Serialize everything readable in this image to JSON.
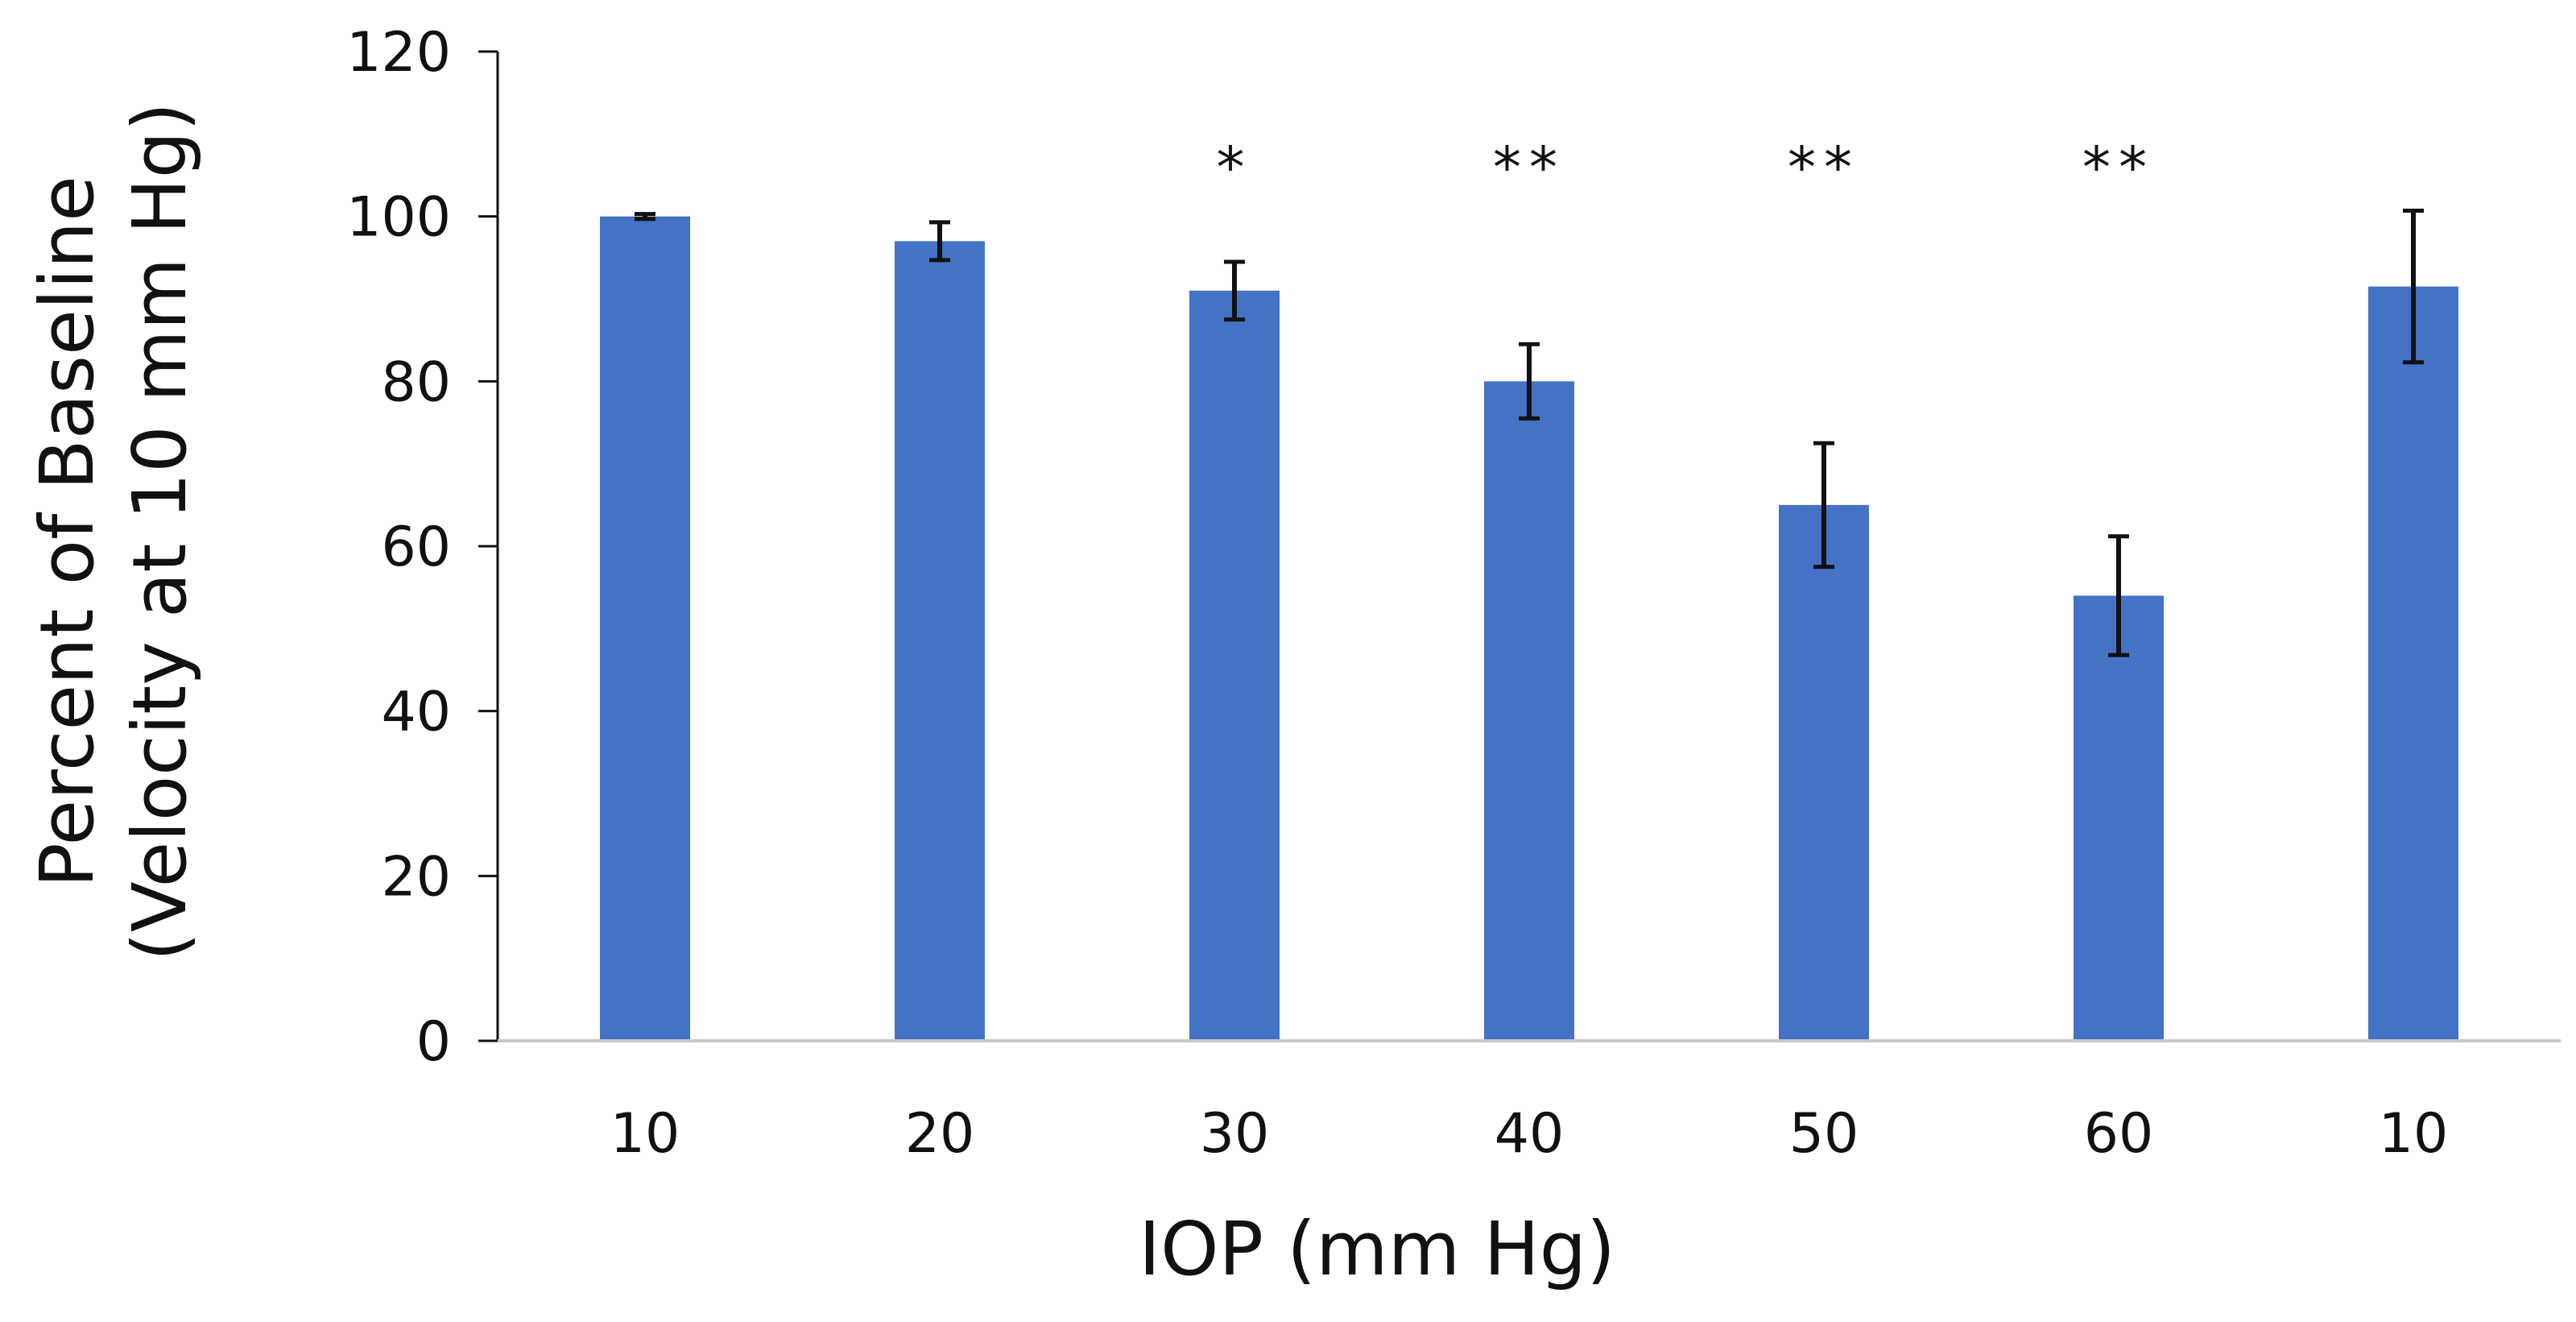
{
  "chart_data": {
    "type": "bar",
    "title": "",
    "xlabel": "IOP (mm Hg)",
    "ylabel_line1": "Percent of Baseline",
    "ylabel_line2": "(Velocity at 10 mm Hg)",
    "categories": [
      "10",
      "20",
      "30",
      "40",
      "50",
      "60",
      "10"
    ],
    "values": [
      100,
      97,
      91,
      80,
      65,
      54,
      91.5
    ],
    "error": [
      0.3,
      2.3,
      3.5,
      4.5,
      7.5,
      7.2,
      9.2
    ],
    "significance": [
      "",
      "",
      "*",
      "**",
      "**",
      "**",
      ""
    ],
    "ylim": [
      0,
      120
    ],
    "yticks": [
      0,
      20,
      40,
      60,
      80,
      100,
      120
    ],
    "ytick_labels": [
      "0",
      "20",
      "40",
      "60",
      "80",
      "100",
      "120"
    ],
    "bar_color": "#4472C4",
    "error_color": "#111111",
    "axis_color": "#111111",
    "grid": false,
    "legend": "none"
  }
}
